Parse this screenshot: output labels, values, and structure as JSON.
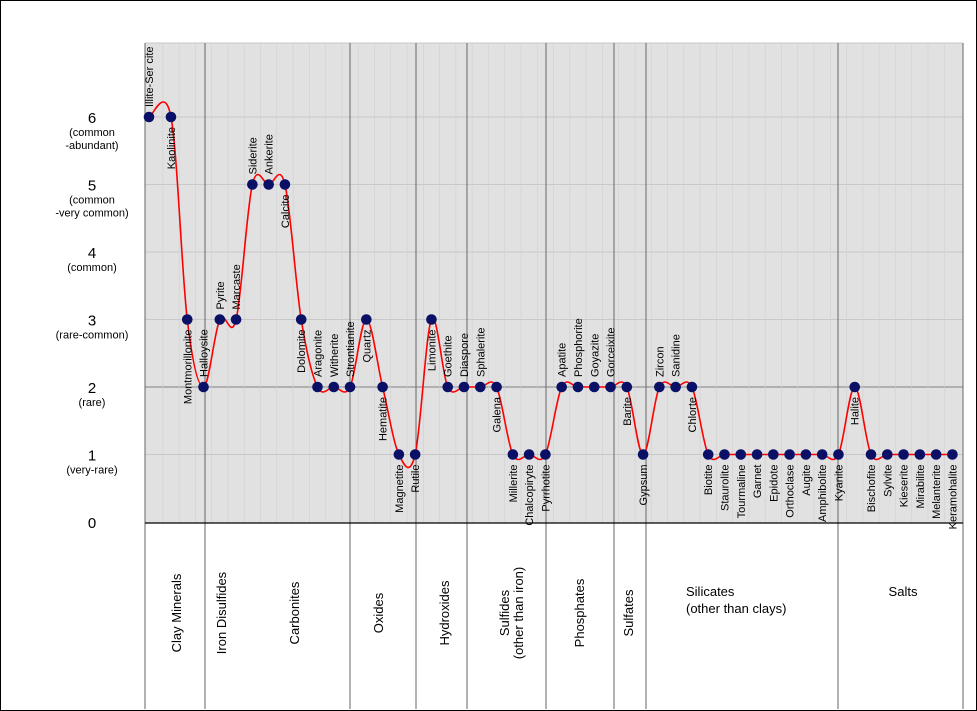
{
  "chart_data": {
    "type": "line",
    "title": "",
    "xlabel": "",
    "ylabel": "",
    "ylim": [
      0,
      7
    ],
    "grid": true,
    "y_ticks": [
      {
        "value": 0,
        "label": "0",
        "sub": ""
      },
      {
        "value": 1,
        "label": "1",
        "sub": "(very-rare)"
      },
      {
        "value": 2,
        "label": "2",
        "sub": "(rare)"
      },
      {
        "value": 3,
        "label": "3",
        "sub": "(rare-common)"
      },
      {
        "value": 4,
        "label": "4",
        "sub": "(common)"
      },
      {
        "value": 5,
        "label": "5",
        "sub": "(common\n-very common)"
      },
      {
        "value": 6,
        "label": "6",
        "sub": "(common\n-abundant)"
      }
    ],
    "points": [
      {
        "name": "Illite-Ser cite",
        "value": 6,
        "pos": 0
      },
      {
        "name": "Kaolinite",
        "value": 6,
        "pos": 1.35
      },
      {
        "name": "Montmorillonite",
        "value": 3,
        "pos": 2.35
      },
      {
        "name": "Halloysite",
        "value": 2,
        "pos": 3.35
      },
      {
        "name": "Pyrite",
        "value": 3,
        "pos": 4.35
      },
      {
        "name": "Marcaste",
        "value": 3,
        "pos": 5.35
      },
      {
        "name": "Siderite",
        "value": 5,
        "pos": 6.35
      },
      {
        "name": "Ankerite",
        "value": 5,
        "pos": 7.35
      },
      {
        "name": "Calcite",
        "value": 5,
        "pos": 8.35
      },
      {
        "name": "Dolomite",
        "value": 3,
        "pos": 9.35
      },
      {
        "name": "Aragonite",
        "value": 2,
        "pos": 10.35
      },
      {
        "name": "Witherite",
        "value": 2,
        "pos": 11.35
      },
      {
        "name": "Strontianite",
        "value": 2,
        "pos": 12.35
      },
      {
        "name": "Quartz",
        "value": 3,
        "pos": 13.35
      },
      {
        "name": "Hematite",
        "value": 2,
        "pos": 14.35
      },
      {
        "name": "Magnetite",
        "value": 1,
        "pos": 15.35
      },
      {
        "name": "Rutile",
        "value": 1,
        "pos": 16.35
      },
      {
        "name": "Limonite",
        "value": 3,
        "pos": 17.35
      },
      {
        "name": "Goethite",
        "value": 2,
        "pos": 18.35
      },
      {
        "name": "Diaspore",
        "value": 2,
        "pos": 19.35
      },
      {
        "name": "Sphalerite",
        "value": 2,
        "pos": 20.35
      },
      {
        "name": "Galena",
        "value": 2,
        "pos": 21.35
      },
      {
        "name": "Millerite",
        "value": 1,
        "pos": 22.35
      },
      {
        "name": "Chalcopiryte",
        "value": 1,
        "pos": 23.35
      },
      {
        "name": "Pyrrhotite",
        "value": 1,
        "pos": 24.35
      },
      {
        "name": "Apatite",
        "value": 2,
        "pos": 25.35
      },
      {
        "name": "Phosphorite",
        "value": 2,
        "pos": 26.35
      },
      {
        "name": "Goyazite",
        "value": 2,
        "pos": 27.35
      },
      {
        "name": "Gorceixite",
        "value": 2,
        "pos": 28.35
      },
      {
        "name": "Barite",
        "value": 2,
        "pos": 29.35
      },
      {
        "name": "Gypsum",
        "value": 1,
        "pos": 30.35
      },
      {
        "name": "Zircon",
        "value": 2,
        "pos": 31.35
      },
      {
        "name": "Sanidine",
        "value": 2,
        "pos": 32.35
      },
      {
        "name": "Chlorte",
        "value": 2,
        "pos": 33.35
      },
      {
        "name": "Biotite",
        "value": 1,
        "pos": 34.35
      },
      {
        "name": "Staurolite",
        "value": 1,
        "pos": 35.35
      },
      {
        "name": "Tourmaline",
        "value": 1,
        "pos": 36.35
      },
      {
        "name": "Garnet",
        "value": 1,
        "pos": 37.35
      },
      {
        "name": "Epidote",
        "value": 1,
        "pos": 38.35
      },
      {
        "name": "Orthoclase",
        "value": 1,
        "pos": 39.35
      },
      {
        "name": "Augite",
        "value": 1,
        "pos": 40.35
      },
      {
        "name": "Amphibolite",
        "value": 1,
        "pos": 41.35
      },
      {
        "name": "Kyanite",
        "value": 1,
        "pos": 42.35
      },
      {
        "name": "Halite",
        "value": 2,
        "pos": 43.35
      },
      {
        "name": "Bischofite",
        "value": 1,
        "pos": 44.35
      },
      {
        "name": "Sylvite",
        "value": 1,
        "pos": 45.35
      },
      {
        "name": "Kieserite",
        "value": 1,
        "pos": 46.35
      },
      {
        "name": "Mirabilite",
        "value": 1,
        "pos": 47.35
      },
      {
        "name": "Melanterite",
        "value": 1,
        "pos": 48.35
      },
      {
        "name": "Keramohalite",
        "value": 1,
        "pos": 49.35
      }
    ],
    "groups": [
      {
        "name": "Clay Minerals",
        "lines": [
          "Clay Minerals"
        ]
      },
      {
        "name": "Iron Disulfides",
        "lines": [
          "Iron Disulfides"
        ]
      },
      {
        "name": "Carbonites",
        "lines": [
          "Carbonites"
        ]
      },
      {
        "name": "Oxides",
        "lines": [
          "Oxides"
        ]
      },
      {
        "name": "Hydroxides",
        "lines": [
          "Hydroxides"
        ]
      },
      {
        "name": "Sulfides (other than iron)",
        "lines": [
          "Sulfides",
          "(other than iron)"
        ]
      },
      {
        "name": "Phosphates",
        "lines": [
          "Phosphates"
        ]
      },
      {
        "name": "Sulfates",
        "lines": [
          "Sulfates"
        ]
      },
      {
        "name": "Silicates (other than clays)",
        "lines": [
          "Silicates",
          "(other than clays)"
        ]
      },
      {
        "name": "Salts",
        "lines": [
          "Salts"
        ]
      }
    ],
    "colors": {
      "plot_background": "#e1e1e1",
      "line": "#ff0000",
      "marker": "#0a1066",
      "grid_major": "#808080",
      "grid_minor": "#c8c8c8"
    }
  }
}
